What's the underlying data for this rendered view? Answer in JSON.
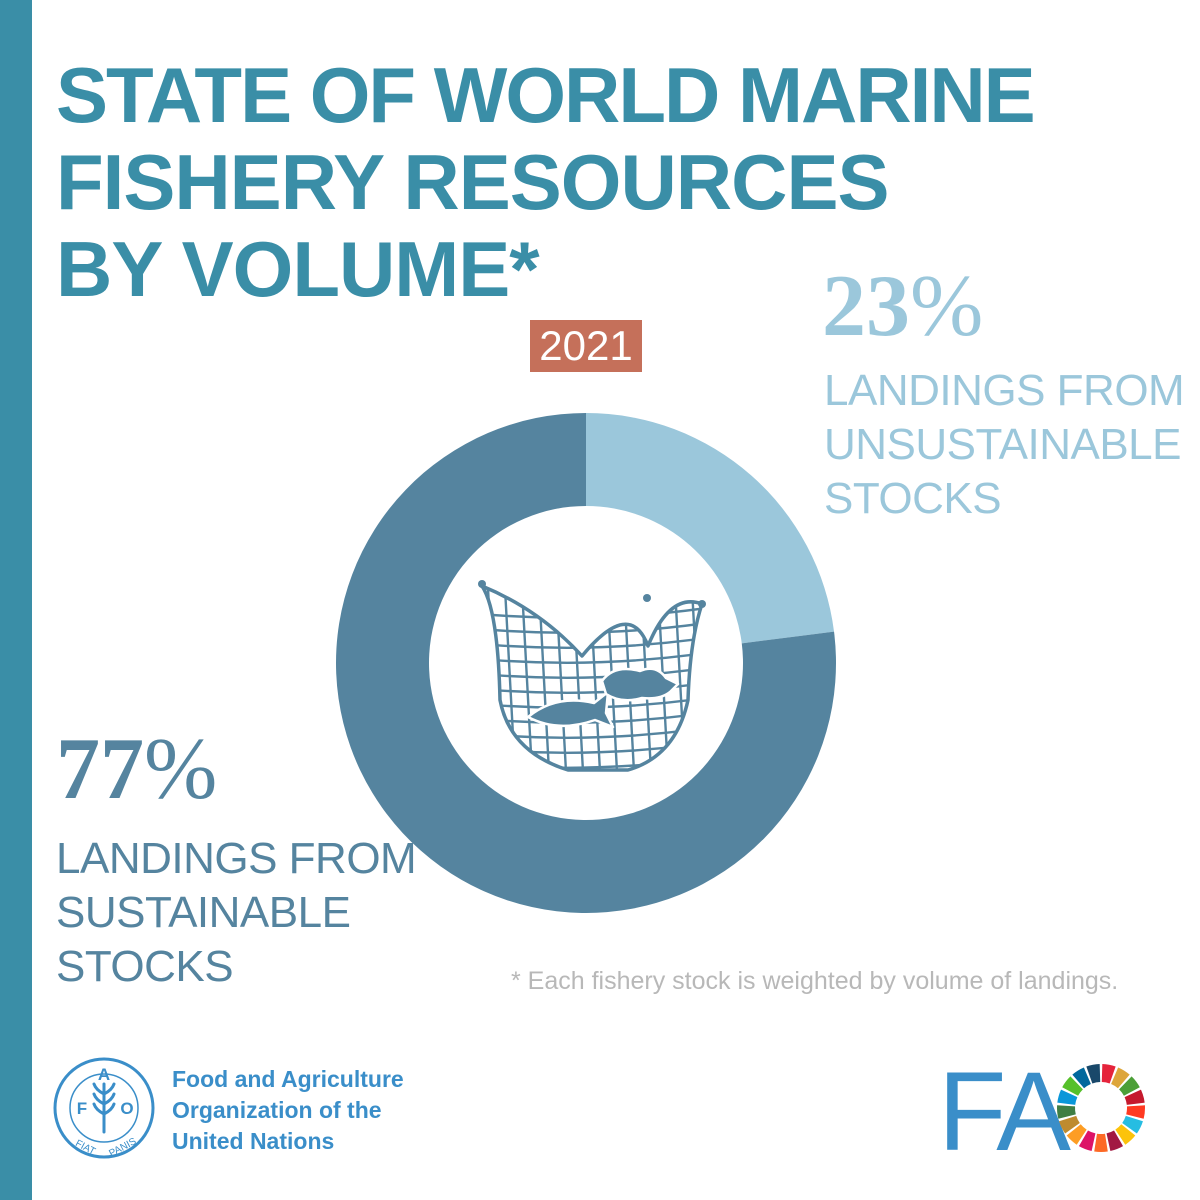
{
  "title_lines": [
    "STATE OF WORLD MARINE",
    "FISHERY RESOURCES",
    "BY VOLUME*"
  ],
  "year": "2021",
  "colors": {
    "accent": "#3a8ea7",
    "unsustainable": "#9bc7db",
    "sustainable": "#55849f",
    "year_badge": "#c5705a",
    "footnote": "#b8b8b8",
    "fao_blue": "#3a8ec9"
  },
  "chart_data": {
    "type": "pie",
    "donut": true,
    "title": "STATE OF WORLD MARINE FISHERY RESOURCES BY VOLUME*",
    "year": "2021",
    "slices": [
      {
        "label": "LANDINGS FROM UNSUSTAINABLE STOCKS",
        "value": 23,
        "value_label": "23",
        "label_lines": [
          "LANDINGS FROM",
          "UNSUSTAINABLE",
          "STOCKS"
        ],
        "color": "#9bc7db"
      },
      {
        "label": "LANDINGS FROM SUSTAINABLE STOCKS",
        "value": 77,
        "value_label": "77",
        "label_lines": [
          "LANDINGS FROM",
          "SUSTAINABLE",
          "STOCKS"
        ],
        "color": "#55849f"
      }
    ],
    "unit": "%"
  },
  "center_icon": "fishing-net-icon",
  "footnote": "* Each fishery stock is weighted by volume of landings.",
  "footer": {
    "emblem_icon": "fao-emblem-icon",
    "emblem_letters": [
      "F",
      "A",
      "O"
    ],
    "emblem_motto": [
      "FIAT",
      "PANIS"
    ],
    "org_lines": [
      "Food and Agriculture",
      "Organization of the",
      "United Nations"
    ],
    "logo_text": "FA",
    "sdg_icon": "sdg-color-wheel-icon",
    "sdg_colors": [
      "#e5243b",
      "#dda63a",
      "#4c9f38",
      "#c5192d",
      "#ff3a21",
      "#26bde2",
      "#fcc30b",
      "#a21942",
      "#fd6925",
      "#dd1367",
      "#fd9d24",
      "#bf8b2e",
      "#3f7e44",
      "#0a97d9",
      "#56c02b",
      "#00689d",
      "#19486a"
    ]
  }
}
